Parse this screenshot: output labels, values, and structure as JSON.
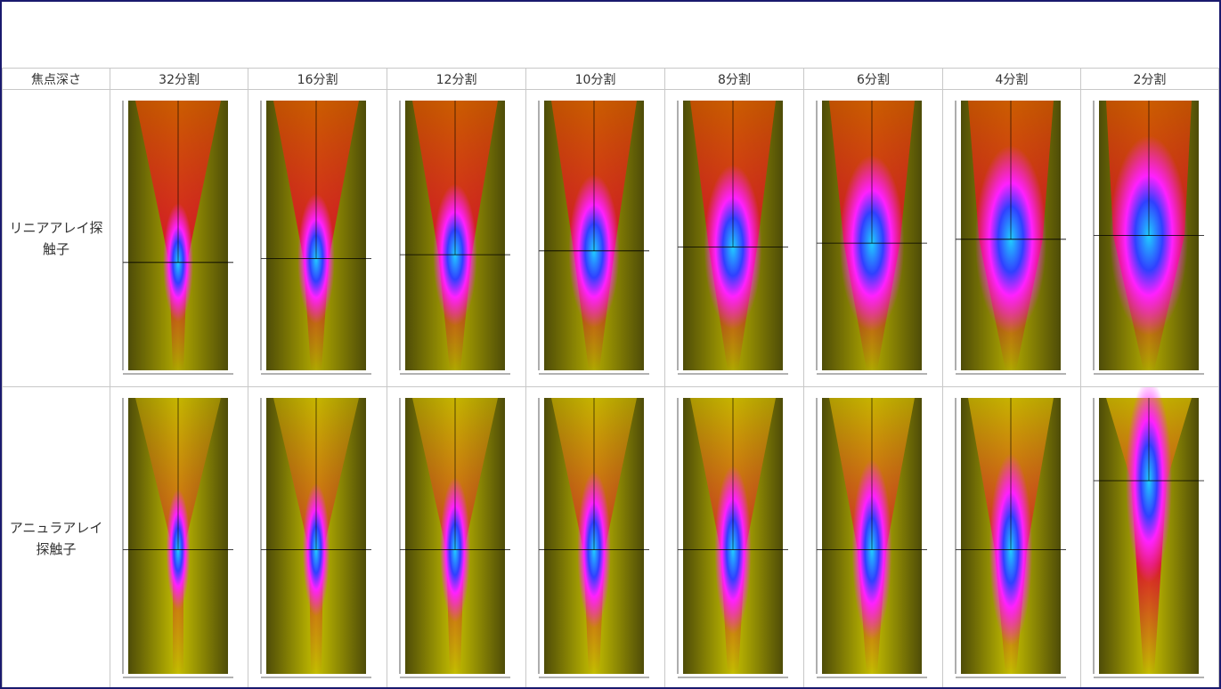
{
  "table": {
    "header": [
      "焦点深さ",
      "32分割",
      "16分割",
      "12分割",
      "10分割",
      "8分割",
      "6分割",
      "4分割",
      "2分割"
    ],
    "rows": [
      {
        "label": "リニアアレイ探触子"
      },
      {
        "label": "アニュラアレイ探触子"
      }
    ]
  }
}
